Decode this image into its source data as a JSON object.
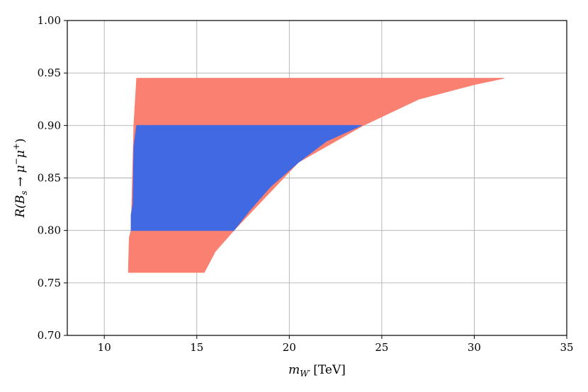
{
  "chart_data": {
    "type": "area",
    "xlabel": "m_{W′} [TeV]",
    "xlabel_parts": {
      "symbol": "m",
      "subscript": "W′",
      "unit": "[TeV]"
    },
    "ylabel": "R(B_s → μ⁻μ⁺)",
    "ylabel_parts": {
      "prefix": "R(B",
      "subscript": "s",
      "arrow": " → ",
      "mu1": "μ",
      "sup1": "−",
      "mu2": "μ",
      "sup2": "+",
      "close": ")"
    },
    "xlim": [
      8,
      35
    ],
    "ylim": [
      0.7,
      1.0
    ],
    "xticks": [
      10,
      15,
      20,
      25,
      30,
      35
    ],
    "yticks": [
      0.7,
      0.75,
      0.8,
      0.85,
      0.9,
      0.95,
      1.0
    ],
    "xtick_labels": [
      "10",
      "15",
      "20",
      "25",
      "30",
      "35"
    ],
    "ytick_labels": [
      "0.70",
      "0.75",
      "0.80",
      "0.85",
      "0.90",
      "0.95",
      "1.00"
    ],
    "grid": true,
    "series": [
      {
        "color": "#fa8072",
        "polygon": [
          [
            11.3,
            0.76
          ],
          [
            11.35,
            0.793
          ],
          [
            11.45,
            0.8
          ],
          [
            11.6,
            0.9
          ],
          [
            11.75,
            0.945
          ],
          [
            31.6,
            0.945
          ],
          [
            30.0,
            0.939
          ],
          [
            27.0,
            0.925
          ],
          [
            24.0,
            0.9
          ],
          [
            20.5,
            0.865
          ],
          [
            17.0,
            0.8
          ],
          [
            16.0,
            0.78
          ],
          [
            15.4,
            0.76
          ]
        ]
      },
      {
        "color": "#4169e1",
        "polygon": [
          [
            11.45,
            0.8
          ],
          [
            11.45,
            0.815
          ],
          [
            11.55,
            0.825
          ],
          [
            11.6,
            0.88
          ],
          [
            11.75,
            0.9
          ],
          [
            23.9,
            0.9
          ],
          [
            22.0,
            0.885
          ],
          [
            20.5,
            0.865
          ],
          [
            19.0,
            0.842
          ],
          [
            17.9,
            0.82
          ],
          [
            17.0,
            0.8
          ]
        ]
      }
    ]
  }
}
